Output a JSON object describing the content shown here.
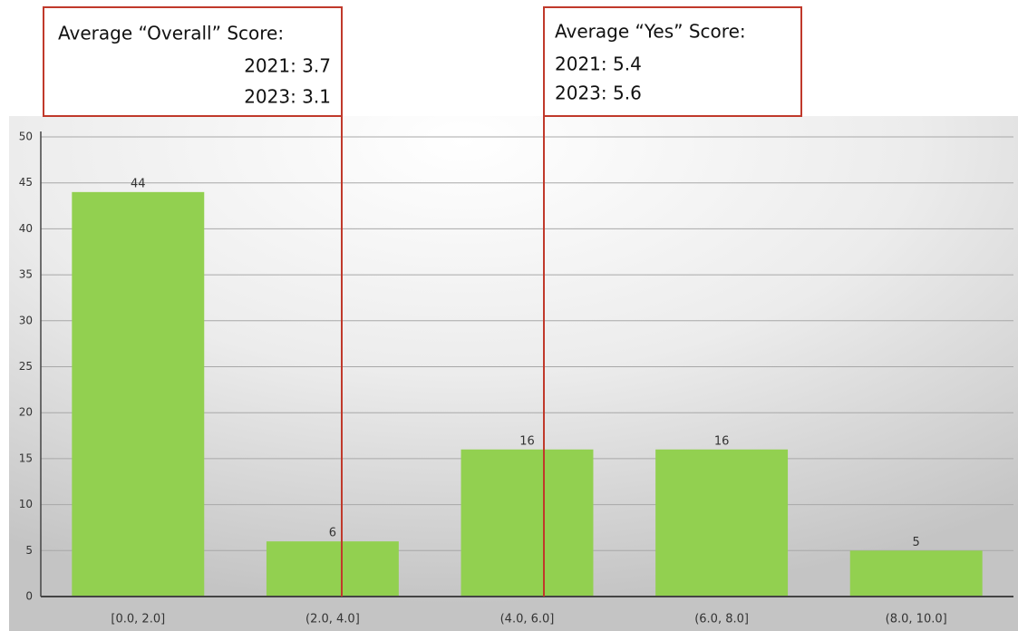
{
  "chart_data": {
    "type": "bar",
    "categories": [
      "[0.0, 2.0]",
      "(2.0, 4.0]",
      "(4.0, 6.0]",
      "(6.0, 8.0]",
      "(8.0, 10.0]"
    ],
    "values": [
      44,
      6,
      16,
      16,
      5
    ],
    "color": "#92d050",
    "ylim": [
      0,
      50
    ],
    "yticks": [
      0,
      5,
      10,
      15,
      20,
      25,
      30,
      35,
      40,
      45,
      50
    ],
    "grid": true,
    "annotations": [
      {
        "title": "Average “Overall” Score:",
        "lines": [
          "2021: 3.7",
          "2023: 3.1"
        ]
      },
      {
        "title": "Average “Yes” Score:",
        "lines": [
          "2021: 5.4",
          "2023: 5.6"
        ]
      }
    ]
  }
}
